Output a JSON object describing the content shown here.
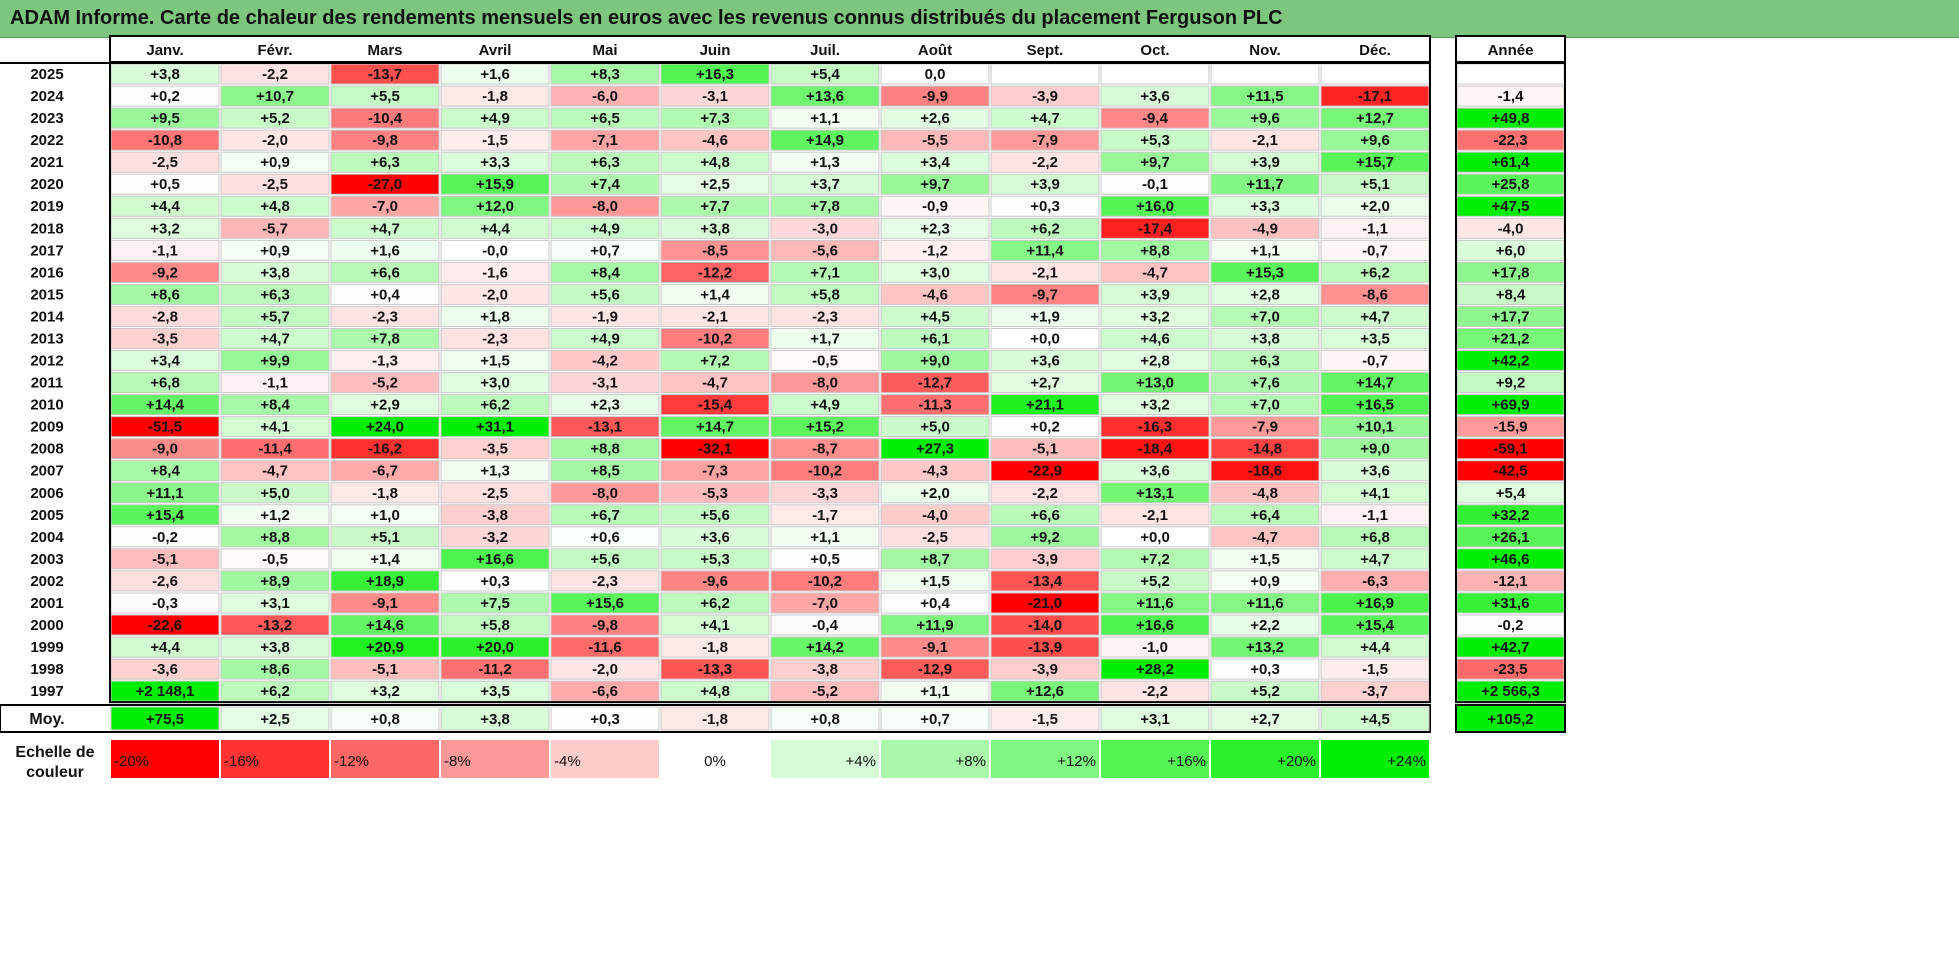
{
  "title": "ADAM Informe. Carte de chaleur des rendements mensuels en euros avec les revenus connus distribués du placement Ferguson PLC",
  "chart_data": {
    "type": "heatmap",
    "months": [
      "Janv.",
      "Févr.",
      "Mars",
      "Avril",
      "Mai",
      "Juin",
      "Juil.",
      "Août",
      "Sept.",
      "Oct.",
      "Nov.",
      "Déc."
    ],
    "year_header": "Année",
    "rows": [
      {
        "year": "2025",
        "values": [
          "+3,8",
          "-2,2",
          "-13,7",
          "+1,6",
          "+8,3",
          "+16,3",
          "+5,4",
          "0,0",
          "",
          "",
          "",
          ""
        ],
        "annual": ""
      },
      {
        "year": "2024",
        "values": [
          "+0,2",
          "+10,7",
          "+5,5",
          "-1,8",
          "-6,0",
          "-3,1",
          "+13,6",
          "-9,9",
          "-3,9",
          "+3,6",
          "+11,5",
          "-17,1"
        ],
        "annual": "-1,4"
      },
      {
        "year": "2023",
        "values": [
          "+9,5",
          "+5,2",
          "-10,4",
          "+4,9",
          "+6,5",
          "+7,3",
          "+1,1",
          "+2,6",
          "+4,7",
          "-9,4",
          "+9,6",
          "+12,7"
        ],
        "annual": "+49,8"
      },
      {
        "year": "2022",
        "values": [
          "-10,8",
          "-2,0",
          "-9,8",
          "-1,5",
          "-7,1",
          "-4,6",
          "+14,9",
          "-5,5",
          "-7,9",
          "+5,3",
          "-2,1",
          "+9,6"
        ],
        "annual": "-22,3"
      },
      {
        "year": "2021",
        "values": [
          "-2,5",
          "+0,9",
          "+6,3",
          "+3,3",
          "+6,3",
          "+4,8",
          "+1,3",
          "+3,4",
          "-2,2",
          "+9,7",
          "+3,9",
          "+15,7"
        ],
        "annual": "+61,4"
      },
      {
        "year": "2020",
        "values": [
          "+0,5",
          "-2,5",
          "-27,0",
          "+15,9",
          "+7,4",
          "+2,5",
          "+3,7",
          "+9,7",
          "+3,9",
          "-0,1",
          "+11,7",
          "+5,1"
        ],
        "annual": "+25,8"
      },
      {
        "year": "2019",
        "values": [
          "+4,4",
          "+4,8",
          "-7,0",
          "+12,0",
          "-8,0",
          "+7,7",
          "+7,8",
          "-0,9",
          "+0,3",
          "+16,0",
          "+3,3",
          "+2,0"
        ],
        "annual": "+47,5"
      },
      {
        "year": "2018",
        "values": [
          "+3,2",
          "-5,7",
          "+4,7",
          "+4,4",
          "+4,9",
          "+3,8",
          "-3,0",
          "+2,3",
          "+6,2",
          "-17,4",
          "-4,9",
          "-1,1"
        ],
        "annual": "-4,0"
      },
      {
        "year": "2017",
        "values": [
          "-1,1",
          "+0,9",
          "+1,6",
          "-0,0",
          "+0,7",
          "-8,5",
          "-5,6",
          "-1,2",
          "+11,4",
          "+8,8",
          "+1,1",
          "-0,7"
        ],
        "annual": "+6,0"
      },
      {
        "year": "2016",
        "values": [
          "-9,2",
          "+3,8",
          "+6,6",
          "-1,6",
          "+8,4",
          "-12,2",
          "+7,1",
          "+3,0",
          "-2,1",
          "-4,7",
          "+15,3",
          "+6,2"
        ],
        "annual": "+17,8"
      },
      {
        "year": "2015",
        "values": [
          "+8,6",
          "+6,3",
          "+0,4",
          "-2,0",
          "+5,6",
          "+1,4",
          "+5,8",
          "-4,6",
          "-9,7",
          "+3,9",
          "+2,8",
          "-8,6"
        ],
        "annual": "+8,4"
      },
      {
        "year": "2014",
        "values": [
          "-2,8",
          "+5,7",
          "-2,3",
          "+1,8",
          "-1,9",
          "-2,1",
          "-2,3",
          "+4,5",
          "+1,9",
          "+3,2",
          "+7,0",
          "+4,7"
        ],
        "annual": "+17,7"
      },
      {
        "year": "2013",
        "values": [
          "-3,5",
          "+4,7",
          "+7,8",
          "-2,3",
          "+4,9",
          "-10,2",
          "+1,7",
          "+6,1",
          "+0,0",
          "+4,6",
          "+3,8",
          "+3,5"
        ],
        "annual": "+21,2"
      },
      {
        "year": "2012",
        "values": [
          "+3,4",
          "+9,9",
          "-1,3",
          "+1,5",
          "-4,2",
          "+7,2",
          "-0,5",
          "+9,0",
          "+3,6",
          "+2,8",
          "+6,3",
          "-0,7"
        ],
        "annual": "+42,2"
      },
      {
        "year": "2011",
        "values": [
          "+6,8",
          "-1,1",
          "-5,2",
          "+3,0",
          "-3,1",
          "-4,7",
          "-8,0",
          "-12,7",
          "+2,7",
          "+13,0",
          "+7,6",
          "+14,7"
        ],
        "annual": "+9,2"
      },
      {
        "year": "2010",
        "values": [
          "+14,4",
          "+8,4",
          "+2,9",
          "+6,2",
          "+2,3",
          "-15,4",
          "+4,9",
          "-11,3",
          "+21,1",
          "+3,2",
          "+7,0",
          "+16,5"
        ],
        "annual": "+69,9"
      },
      {
        "year": "2009",
        "values": [
          "-51,5",
          "+4,1",
          "+24,0",
          "+31,1",
          "-13,1",
          "+14,7",
          "+15,2",
          "+5,0",
          "+0,2",
          "-16,3",
          "-7,9",
          "+10,1"
        ],
        "annual": "-15,9"
      },
      {
        "year": "2008",
        "values": [
          "-9,0",
          "-11,4",
          "-16,2",
          "-3,5",
          "+8,8",
          "-32,1",
          "-8,7",
          "+27,3",
          "-5,1",
          "-18,4",
          "-14,8",
          "+9,0"
        ],
        "annual": "-59,1"
      },
      {
        "year": "2007",
        "values": [
          "+8,4",
          "-4,7",
          "-6,7",
          "+1,3",
          "+8,5",
          "-7,3",
          "-10,2",
          "-4,3",
          "-22,9",
          "+3,6",
          "-18,6",
          "+3,6"
        ],
        "annual": "-42,5"
      },
      {
        "year": "2006",
        "values": [
          "+11,1",
          "+5,0",
          "-1,8",
          "-2,5",
          "-8,0",
          "-5,3",
          "-3,3",
          "+2,0",
          "-2,2",
          "+13,1",
          "-4,8",
          "+4,1"
        ],
        "annual": "+5,4"
      },
      {
        "year": "2005",
        "values": [
          "+15,4",
          "+1,2",
          "+1,0",
          "-3,8",
          "+6,7",
          "+5,6",
          "-1,7",
          "-4,0",
          "+6,6",
          "-2,1",
          "+6,4",
          "-1,1"
        ],
        "annual": "+32,2"
      },
      {
        "year": "2004",
        "values": [
          "-0,2",
          "+8,8",
          "+5,1",
          "-3,2",
          "+0,6",
          "+3,6",
          "+1,1",
          "-2,5",
          "+9,2",
          "+0,0",
          "-4,7",
          "+6,8"
        ],
        "annual": "+26,1"
      },
      {
        "year": "2003",
        "values": [
          "-5,1",
          "-0,5",
          "+1,4",
          "+16,6",
          "+5,6",
          "+5,3",
          "+0,5",
          "+8,7",
          "-3,9",
          "+7,2",
          "+1,5",
          "+4,7"
        ],
        "annual": "+46,6"
      },
      {
        "year": "2002",
        "values": [
          "-2,6",
          "+8,9",
          "+18,9",
          "+0,3",
          "-2,3",
          "-9,6",
          "-10,2",
          "+1,5",
          "-13,4",
          "+5,2",
          "+0,9",
          "-6,3"
        ],
        "annual": "-12,1"
      },
      {
        "year": "2001",
        "values": [
          "-0,3",
          "+3,1",
          "-9,1",
          "+7,5",
          "+15,6",
          "+6,2",
          "-7,0",
          "+0,4",
          "-21,0",
          "+11,6",
          "+11,6",
          "+16,9"
        ],
        "annual": "+31,6"
      },
      {
        "year": "2000",
        "values": [
          "-22,6",
          "-13,2",
          "+14,6",
          "+5,8",
          "-9,8",
          "+4,1",
          "-0,4",
          "+11,9",
          "-14,0",
          "+16,6",
          "+2,2",
          "+15,4"
        ],
        "annual": "-0,2"
      },
      {
        "year": "1999",
        "values": [
          "+4,4",
          "+3,8",
          "+20,9",
          "+20,0",
          "-11,6",
          "-1,8",
          "+14,2",
          "-9,1",
          "-13,9",
          "-1,0",
          "+13,2",
          "+4,4"
        ],
        "annual": "+42,7"
      },
      {
        "year": "1998",
        "values": [
          "-3,6",
          "+8,6",
          "-5,1",
          "-11,2",
          "-2,0",
          "-13,3",
          "-3,8",
          "-12,9",
          "-3,9",
          "+28,2",
          "+0,3",
          "-1,5"
        ],
        "annual": "-23,5"
      },
      {
        "year": "1997",
        "values": [
          "+2 148,1",
          "+6,2",
          "+3,2",
          "+3,5",
          "-6,6",
          "+4,8",
          "-5,2",
          "+1,1",
          "+12,6",
          "-2,2",
          "+5,2",
          "-3,7"
        ],
        "annual": "+2 566,3"
      }
    ],
    "average": {
      "label": "Moy.",
      "values": [
        "+75,5",
        "+2,5",
        "+0,8",
        "+3,8",
        "+0,3",
        "-1,8",
        "+0,8",
        "+0,7",
        "-1,5",
        "+3,1",
        "+2,7",
        "+4,5"
      ],
      "annual": "+105,2"
    },
    "scale": {
      "label_line1": "Echelle de",
      "label_line2": "couleur",
      "steps": [
        "-20%",
        "-16%",
        "-12%",
        "-8%",
        "-4%",
        "0%",
        "+4%",
        "+8%",
        "+12%",
        "+16%",
        "+20%",
        "+24%"
      ],
      "step_values": [
        -20,
        -16,
        -12,
        -8,
        -4,
        0,
        4,
        8,
        12,
        16,
        20,
        24
      ]
    },
    "colors": {
      "title_bar": "#7dc67d",
      "negative_max": "#ff0000",
      "neutral": "#ffffff",
      "positive_max": "#00ee00",
      "grid": "#c8c8c8",
      "border": "#000000"
    }
  }
}
